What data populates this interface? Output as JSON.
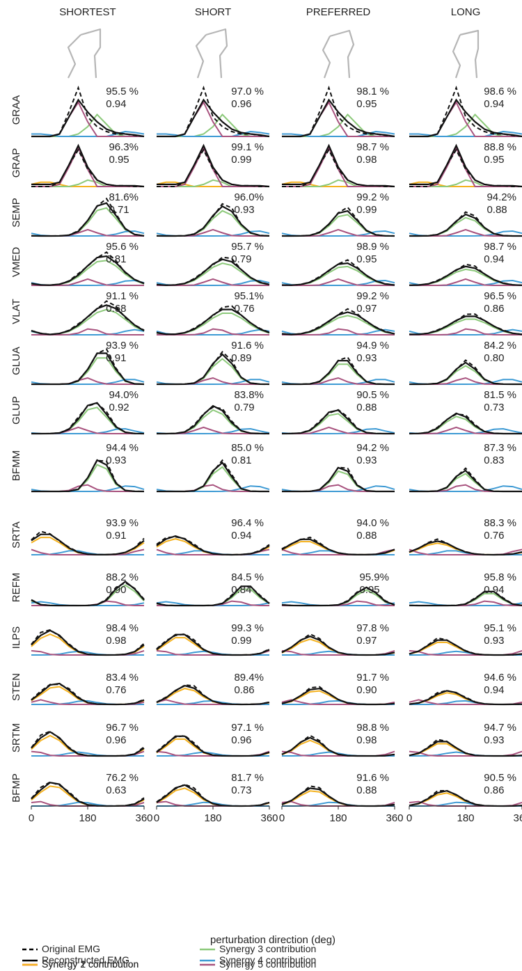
{
  "chart_data": {
    "type": "line",
    "columns": [
      "SHORTEST",
      "SHORT",
      "PREFERRED",
      "LONG"
    ],
    "muscles": [
      "GRAA",
      "GRAP",
      "SEMP",
      "VMED",
      "VLAT",
      "GLUA",
      "GLUP",
      "BFMM",
      "SRTA",
      "REFM",
      "ILPS",
      "STEN",
      "SRTM",
      "BFMP"
    ],
    "xlabel": "perturbation direction (deg)",
    "xticks": [
      "0",
      "180",
      "360"
    ],
    "xlim": [
      0,
      360
    ],
    "ylim": [
      0,
      1
    ],
    "legend": [
      {
        "name": "Original EMG",
        "color": "#000000",
        "dash": true
      },
      {
        "name": "Reconstructed EMG",
        "color": "#000000",
        "dash": false
      },
      {
        "name": "Synergy 1 contribution",
        "color": "#e3191c",
        "dash": false
      },
      {
        "name": "Synergy 2 contribution",
        "color": "#f5b21e",
        "dash": false
      },
      {
        "name": "Synergy 3 contribution",
        "color": "#8cc97a",
        "dash": false
      },
      {
        "name": "Synergy 4 contribution",
        "color": "#3d9ad4",
        "dash": false
      },
      {
        "name": "Synergy 5 contribution",
        "color": "#a8527e",
        "dash": false
      }
    ],
    "stats": [
      [
        [
          "95.5 %",
          "0.94"
        ],
        [
          "97.0 %",
          "0.96"
        ],
        [
          "98.1 %",
          "0.95"
        ],
        [
          "98.6 %",
          "0.94"
        ]
      ],
      [
        [
          "96.3%",
          "0.95"
        ],
        [
          "99.1 %",
          "0.99"
        ],
        [
          "98.7 %",
          "0.98"
        ],
        [
          "88.8 %",
          "0.95"
        ]
      ],
      [
        [
          "81.6%",
          "0.71"
        ],
        [
          "96.0%",
          "0.93"
        ],
        [
          "99.2 %",
          "0.99"
        ],
        [
          "94.2%",
          "0.88"
        ]
      ],
      [
        [
          "95.6 %",
          "0.81"
        ],
        [
          "95.7 %",
          "0.79"
        ],
        [
          "98.9 %",
          "0.95"
        ],
        [
          "98.7 %",
          "0.94"
        ]
      ],
      [
        [
          "91.1 %",
          "0.68"
        ],
        [
          "95.1%",
          "0.76"
        ],
        [
          "99.2 %",
          "0.97"
        ],
        [
          "96.5 %",
          "0.86"
        ]
      ],
      [
        [
          "93.9 %",
          "0.91"
        ],
        [
          "91.6 %",
          "0.89"
        ],
        [
          "94.9 %",
          "0.93"
        ],
        [
          "84.2 %",
          "0.80"
        ]
      ],
      [
        [
          "94.0%",
          "0.92"
        ],
        [
          "83.8%",
          "0.79"
        ],
        [
          "90.5 %",
          "0.88"
        ],
        [
          "81.5 %",
          "0.73"
        ]
      ],
      [
        [
          "94.4 %",
          "0.93"
        ],
        [
          "85.0 %",
          "0.81"
        ],
        [
          "94.2 %",
          "0.93"
        ],
        [
          "87.3 %",
          "0.83"
        ]
      ],
      [
        [
          "93.9 %",
          "0.91"
        ],
        [
          "96.4 %",
          "0.94"
        ],
        [
          "94.0 %",
          "0.88"
        ],
        [
          "88.3 %",
          "0.76"
        ]
      ],
      [
        [
          "88.2 %",
          "0.90"
        ],
        [
          "84.5 %",
          "0.84"
        ],
        [
          "95.9%",
          "0.95"
        ],
        [
          "95.8 %",
          "0.94"
        ]
      ],
      [
        [
          "98.4 %",
          "0.98"
        ],
        [
          "99.3 %",
          "0.99"
        ],
        [
          "97.8 %",
          "0.97"
        ],
        [
          "95.1 %",
          "0.93"
        ]
      ],
      [
        [
          "83.4 %",
          "0.76"
        ],
        [
          "89.4%",
          "0.86"
        ],
        [
          "91.7 %",
          "0.90"
        ],
        [
          "94.6 %",
          "0.94"
        ]
      ],
      [
        [
          "96.7 %",
          "0.96"
        ],
        [
          "97.1 %",
          "0.96"
        ],
        [
          "98.8 %",
          "0.98"
        ],
        [
          "94.7 %",
          "0.93"
        ]
      ],
      [
        [
          "76.2 %",
          "0.63"
        ],
        [
          "81.7 %",
          "0.73"
        ],
        [
          "91.6 %",
          "0.88"
        ],
        [
          "90.5 %",
          "0.86"
        ]
      ]
    ],
    "x": [
      0,
      30,
      60,
      90,
      120,
      150,
      180,
      210,
      240,
      270,
      300,
      330,
      360
    ],
    "profiles": {
      "GRAA": {
        "orig": [
          0,
          0,
          0,
          0.05,
          0.5,
          1,
          0.4,
          0.2,
          0.1,
          0.05,
          0.05,
          0.02,
          0
        ],
        "recon": [
          0,
          0,
          0,
          0.05,
          0.4,
          0.75,
          0.5,
          0.3,
          0.15,
          0.08,
          0.05,
          0.03,
          0
        ],
        "s3": [
          0,
          0,
          0,
          0,
          0,
          0.05,
          0.2,
          0.45,
          0.25,
          0.05,
          0,
          0,
          0
        ],
        "s4": [
          0.05,
          0.05,
          0.03,
          0,
          0,
          0,
          0,
          0,
          0,
          0.05,
          0.1,
          0.08,
          0.05
        ],
        "s5": [
          0,
          0,
          0,
          0.05,
          0.4,
          0.7,
          0.3,
          0,
          0,
          0,
          0,
          0,
          0
        ]
      },
      "GRAP": {
        "orig": [
          0,
          0,
          0,
          0.1,
          0.5,
          0.85,
          0.4,
          0.15,
          0.05,
          0.02,
          0.02,
          0,
          0
        ],
        "recon": [
          0.05,
          0.05,
          0.05,
          0.1,
          0.5,
          0.95,
          0.45,
          0.15,
          0.05,
          0.02,
          0.02,
          0.02,
          0
        ],
        "s2": [
          0.05,
          0.1,
          0.1,
          0.05,
          0,
          0,
          0,
          0,
          0,
          0,
          0,
          0,
          0
        ],
        "s3": [
          0,
          0,
          0,
          0,
          0,
          0.05,
          0.15,
          0.1,
          0,
          0,
          0,
          0,
          0
        ],
        "s5": [
          0,
          0,
          0,
          0.05,
          0.45,
          0.9,
          0.4,
          0,
          0,
          0,
          0,
          0,
          0
        ]
      }
    }
  }
}
